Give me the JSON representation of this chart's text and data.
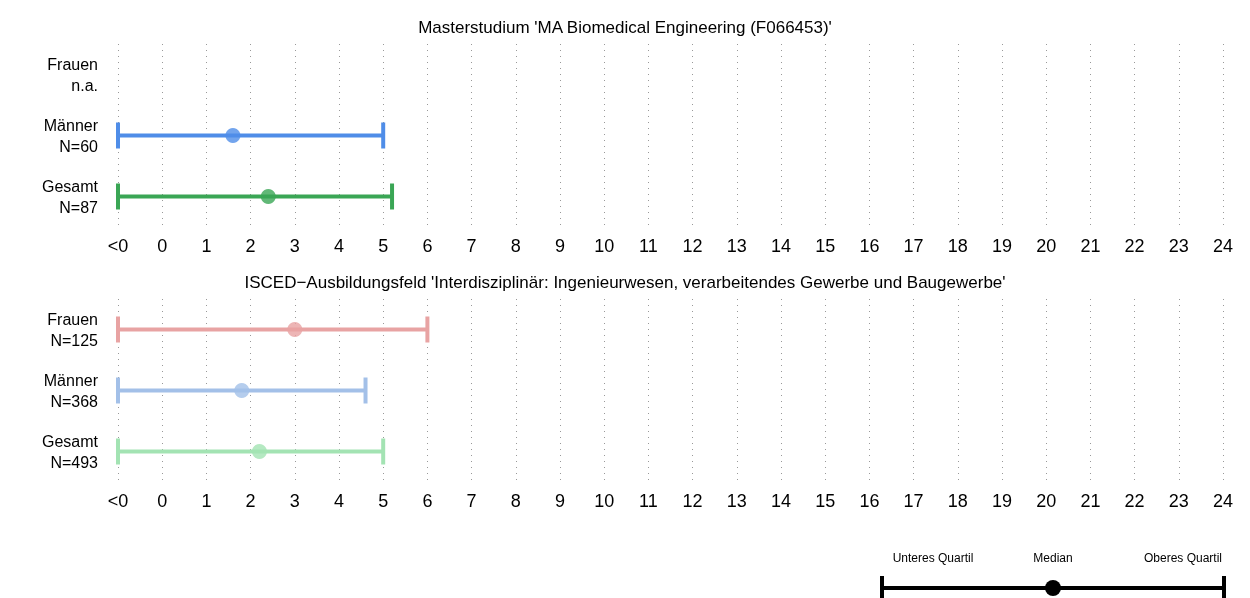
{
  "chart_data": [
    {
      "type": "scatter",
      "orientation": "horizontal",
      "title": "Masterstudium 'MA Biomedical Engineering (F066453)'",
      "categories": [
        "Frauen\nn.a.",
        "Männer\nN=60",
        "Gesamt\nN=87"
      ],
      "series": [
        {
          "values": [
            null,
            1.6,
            2.4
          ],
          "errors": [
            null,
            [
              -1,
              5
            ],
            [
              -1,
              5.2
            ]
          ],
          "colors": [
            null,
            "#4f8de8",
            "#3aa655"
          ]
        }
      ],
      "xlim": [
        -1,
        24
      ],
      "xticks": [
        {
          "value": -1,
          "label": "<0"
        },
        0,
        1,
        2,
        3,
        4,
        5,
        6,
        7,
        8,
        9,
        10,
        11,
        12,
        13,
        14,
        15,
        16,
        17,
        18,
        19,
        20,
        21,
        22,
        23,
        24
      ],
      "grid": "x"
    },
    {
      "type": "scatter",
      "orientation": "horizontal",
      "title": "ISCED−Ausbildungsfeld 'Interdisziplinär: Ingenieurwesen, verarbeitendes Gewerbe und Baugewerbe'",
      "categories": [
        "Frauen\nN=125",
        "Männer\nN=368",
        "Gesamt\nN=493"
      ],
      "series": [
        {
          "values": [
            3,
            1.8,
            2.2
          ],
          "errors": [
            [
              -1,
              6
            ],
            [
              -1,
              4.6
            ],
            [
              -1,
              5
            ]
          ],
          "colors": [
            "#e8a3a3",
            "#a3c0e8",
            "#a3e3b3"
          ]
        }
      ],
      "xlim": [
        -1,
        24
      ],
      "xticks": [
        {
          "value": -1,
          "label": "<0"
        },
        0,
        1,
        2,
        3,
        4,
        5,
        6,
        7,
        8,
        9,
        10,
        11,
        12,
        13,
        14,
        15,
        16,
        17,
        18,
        19,
        20,
        21,
        22,
        23,
        24
      ],
      "grid": "x"
    },
    {
      "type": "other",
      "categories": [
        "Unteres Quartil",
        "Median",
        "Oberes Quartil"
      ],
      "color": "#000000"
    }
  ]
}
